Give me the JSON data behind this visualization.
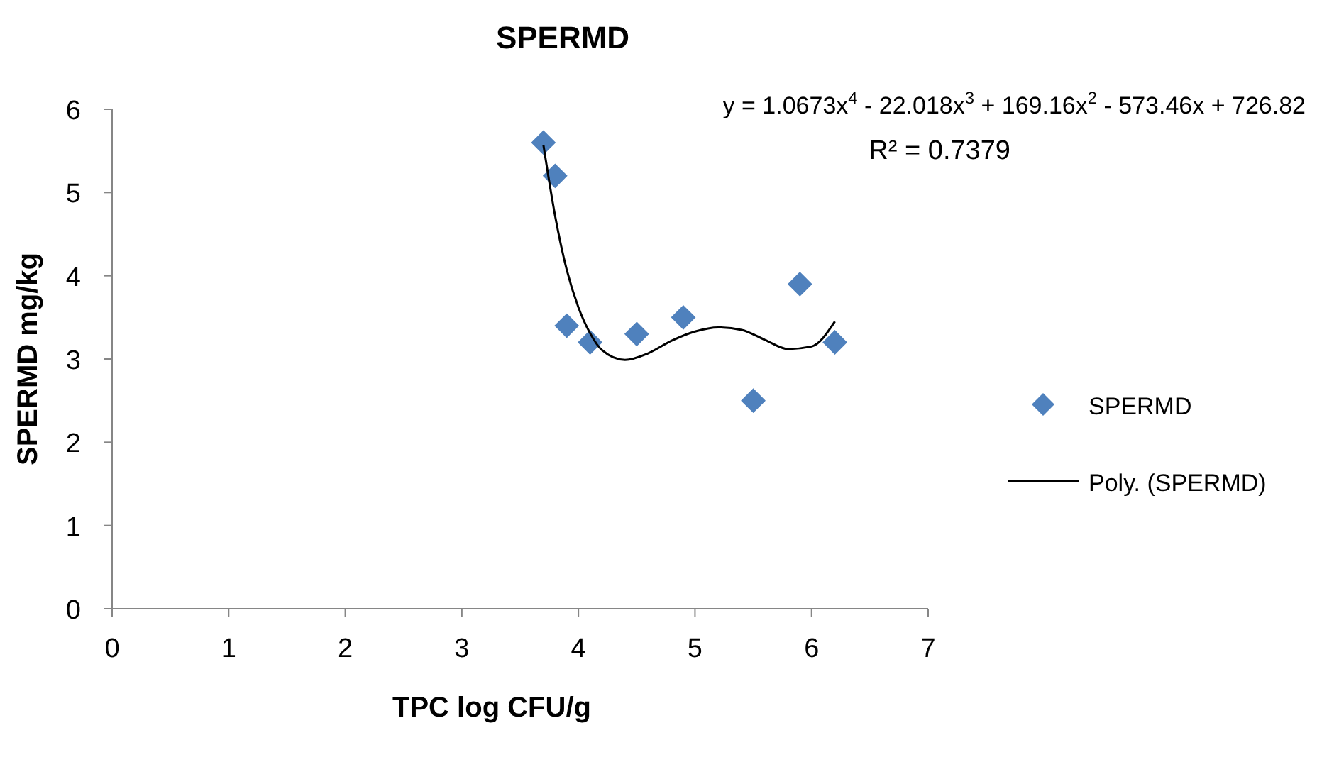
{
  "chart_data": {
    "type": "scatter",
    "title": "SPERMD",
    "xlabel": "TPC log CFU/g",
    "ylabel": "SPERMD mg/kg",
    "xlim": [
      0,
      7
    ],
    "xticks": [
      0,
      1,
      2,
      3,
      4,
      5,
      6,
      7
    ],
    "ylim": [
      0,
      6
    ],
    "yticks": [
      0,
      1,
      2,
      3,
      4,
      5,
      6
    ],
    "grid": false,
    "legend": "right",
    "annotations": [
      "y = 1.0673x$^{4}$ - 22.018x$^{3}$ + 169.16x$^{2}$ - 573.46x + 726.82",
      "R² = 0.7379"
    ],
    "series": [
      {
        "name": "SPERMD",
        "color": "#4f81bd",
        "marker": "diamond",
        "x": [
          3.7,
          3.8,
          3.9,
          4.1,
          4.5,
          4.9,
          5.5,
          5.9,
          6.2
        ],
        "values": [
          5.6,
          5.2,
          3.4,
          3.2,
          3.3,
          3.5,
          2.5,
          3.9,
          3.2
        ]
      },
      {
        "name": "Poly. (SPERMD)",
        "type": "line",
        "color": "#000000",
        "line_style": "solid",
        "x": [
          3.7,
          3.8,
          3.9,
          4.0,
          4.1,
          4.2,
          4.4,
          4.6,
          4.8,
          5.0,
          5.2,
          5.4,
          5.6,
          5.8,
          6.0,
          6.2
        ],
        "values": [
          5.57,
          4.72,
          4.07,
          3.62,
          3.31,
          3.11,
          2.99,
          3.07,
          3.22,
          3.33,
          3.38,
          3.35,
          3.23,
          3.12,
          3.15,
          3.45
        ]
      }
    ]
  }
}
